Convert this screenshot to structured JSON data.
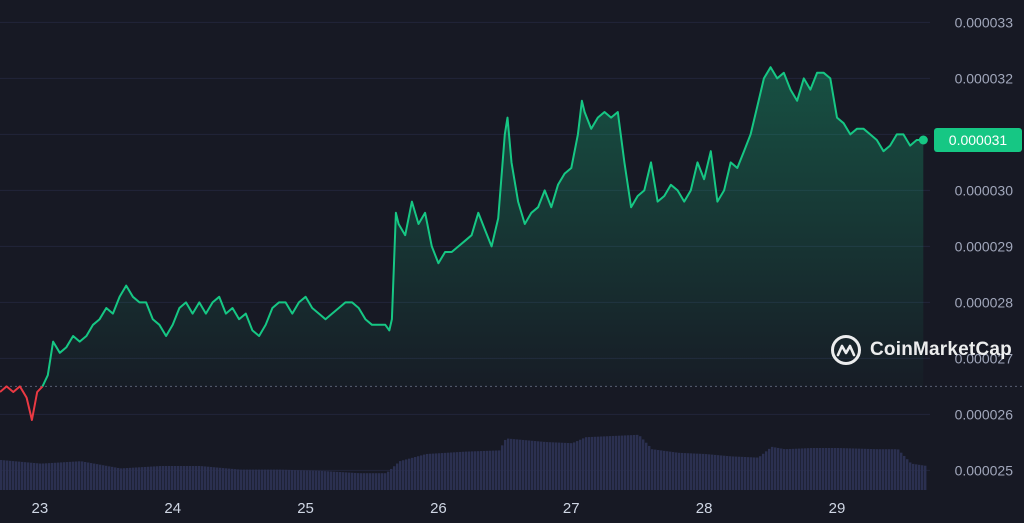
{
  "watermark": {
    "brand": "CoinMarketCap",
    "icon": "coinmarketcap-logo-icon"
  },
  "colors": {
    "background": "#171924",
    "up_line": "#16c784",
    "down_line": "#ea3943",
    "volume": "#2b3050",
    "grid": "#22253a",
    "baseline": "#5a5f73"
  },
  "chart_data": {
    "type": "area",
    "title": "",
    "xlabel": "",
    "ylabel": "",
    "x_ticks": [
      "23",
      "24",
      "25",
      "26",
      "27",
      "28",
      "29"
    ],
    "y_ticks": [
      "0.000025",
      "0.000026",
      "0.000027",
      "0.000028",
      "0.000029",
      "0.000030",
      "0.000031",
      "0.000032",
      "0.000033"
    ],
    "ylim": [
      2.465e-05,
      3.34e-05
    ],
    "xlim": [
      22.7,
      29.67
    ],
    "baseline_price": 2.65e-05,
    "current_price": "0.000031",
    "grid": true,
    "series": [
      {
        "kind": "price",
        "x": [
          22.7,
          22.75,
          22.8,
          22.85,
          22.9,
          22.94,
          22.98,
          23.02,
          23.06,
          23.1,
          23.15,
          23.2,
          23.25,
          23.3,
          23.35,
          23.4,
          23.45,
          23.5,
          23.55,
          23.6,
          23.65,
          23.7,
          23.75,
          23.8,
          23.85,
          23.9,
          23.95,
          24.0,
          24.05,
          24.1,
          24.15,
          24.2,
          24.25,
          24.3,
          24.35,
          24.4,
          24.45,
          24.5,
          24.55,
          24.6,
          24.65,
          24.7,
          24.75,
          24.8,
          24.85,
          24.9,
          24.95,
          25.0,
          25.05,
          25.1,
          25.15,
          25.2,
          25.25,
          25.3,
          25.35,
          25.4,
          25.45,
          25.5,
          25.55,
          25.6,
          25.63,
          25.65,
          25.68,
          25.7,
          25.75,
          25.8,
          25.85,
          25.9,
          25.95,
          26.0,
          26.05,
          26.1,
          26.15,
          26.2,
          26.25,
          26.3,
          26.35,
          26.4,
          26.45,
          26.5,
          26.52,
          26.55,
          26.6,
          26.65,
          26.7,
          26.75,
          26.8,
          26.85,
          26.9,
          26.95,
          27.0,
          27.05,
          27.08,
          27.1,
          27.15,
          27.2,
          27.25,
          27.3,
          27.35,
          27.4,
          27.45,
          27.5,
          27.55,
          27.6,
          27.65,
          27.7,
          27.75,
          27.8,
          27.85,
          27.9,
          27.95,
          28.0,
          28.05,
          28.1,
          28.15,
          28.2,
          28.25,
          28.3,
          28.35,
          28.4,
          28.45,
          28.5,
          28.55,
          28.6,
          28.65,
          28.7,
          28.75,
          28.8,
          28.85,
          28.9,
          28.95,
          29.0,
          29.05,
          29.1,
          29.15,
          29.2,
          29.25,
          29.3,
          29.35,
          29.4,
          29.45,
          29.5,
          29.55,
          29.6,
          29.65
        ],
        "y": [
          2.64e-05,
          2.65e-05,
          2.64e-05,
          2.65e-05,
          2.63e-05,
          2.59e-05,
          2.64e-05,
          2.65e-05,
          2.67e-05,
          2.73e-05,
          2.71e-05,
          2.72e-05,
          2.74e-05,
          2.73e-05,
          2.74e-05,
          2.76e-05,
          2.77e-05,
          2.79e-05,
          2.78e-05,
          2.81e-05,
          2.83e-05,
          2.81e-05,
          2.8e-05,
          2.8e-05,
          2.77e-05,
          2.76e-05,
          2.74e-05,
          2.76e-05,
          2.79e-05,
          2.8e-05,
          2.78e-05,
          2.8e-05,
          2.78e-05,
          2.8e-05,
          2.81e-05,
          2.78e-05,
          2.79e-05,
          2.77e-05,
          2.78e-05,
          2.75e-05,
          2.74e-05,
          2.76e-05,
          2.79e-05,
          2.8e-05,
          2.8e-05,
          2.78e-05,
          2.8e-05,
          2.81e-05,
          2.79e-05,
          2.78e-05,
          2.77e-05,
          2.78e-05,
          2.79e-05,
          2.8e-05,
          2.8e-05,
          2.79e-05,
          2.77e-05,
          2.76e-05,
          2.76e-05,
          2.76e-05,
          2.75e-05,
          2.77e-05,
          2.96e-05,
          2.94e-05,
          2.92e-05,
          2.98e-05,
          2.94e-05,
          2.96e-05,
          2.9e-05,
          2.87e-05,
          2.89e-05,
          2.89e-05,
          2.9e-05,
          2.91e-05,
          2.92e-05,
          2.96e-05,
          2.93e-05,
          2.9e-05,
          2.95e-05,
          3.1e-05,
          3.13e-05,
          3.05e-05,
          2.98e-05,
          2.94e-05,
          2.96e-05,
          2.97e-05,
          3e-05,
          2.97e-05,
          3.01e-05,
          3.03e-05,
          3.04e-05,
          3.1e-05,
          3.16e-05,
          3.14e-05,
          3.11e-05,
          3.13e-05,
          3.14e-05,
          3.13e-05,
          3.14e-05,
          3.05e-05,
          2.97e-05,
          2.99e-05,
          3e-05,
          3.05e-05,
          2.98e-05,
          2.99e-05,
          3.01e-05,
          3e-05,
          2.98e-05,
          3e-05,
          3.05e-05,
          3.02e-05,
          3.07e-05,
          2.98e-05,
          3e-05,
          3.05e-05,
          3.04e-05,
          3.07e-05,
          3.1e-05,
          3.15e-05,
          3.2e-05,
          3.22e-05,
          3.2e-05,
          3.21e-05,
          3.18e-05,
          3.16e-05,
          3.2e-05,
          3.18e-05,
          3.21e-05,
          3.21e-05,
          3.2e-05,
          3.13e-05,
          3.12e-05,
          3.1e-05,
          3.11e-05,
          3.11e-05,
          3.1e-05,
          3.09e-05,
          3.07e-05,
          3.08e-05,
          3.1e-05,
          3.1e-05,
          3.08e-05,
          3.09e-05,
          3.09e-05
        ]
      },
      {
        "kind": "volume",
        "x": [
          22.7,
          23.0,
          23.3,
          23.6,
          23.9,
          24.2,
          24.5,
          24.8,
          25.1,
          25.4,
          25.6,
          25.7,
          25.9,
          26.2,
          26.45,
          26.5,
          26.6,
          26.8,
          27.0,
          27.1,
          27.3,
          27.5,
          27.6,
          27.8,
          28.0,
          28.2,
          28.4,
          28.5,
          28.6,
          28.8,
          29.0,
          29.3,
          29.45,
          29.55,
          29.67
        ],
        "y": [
          0.25,
          0.22,
          0.24,
          0.18,
          0.2,
          0.2,
          0.17,
          0.17,
          0.16,
          0.14,
          0.14,
          0.24,
          0.3,
          0.32,
          0.33,
          0.43,
          0.42,
          0.4,
          0.39,
          0.44,
          0.45,
          0.46,
          0.34,
          0.31,
          0.3,
          0.28,
          0.27,
          0.36,
          0.34,
          0.35,
          0.35,
          0.34,
          0.34,
          0.22,
          0.2
        ]
      }
    ]
  }
}
